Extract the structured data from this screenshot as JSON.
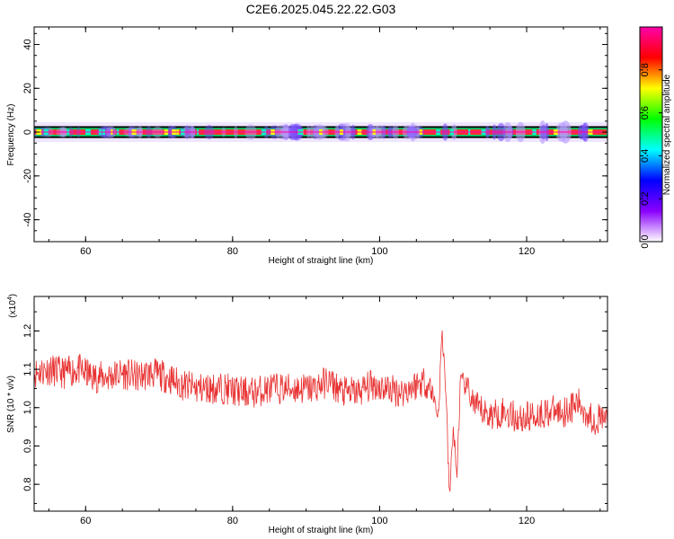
{
  "title": "C2E6.2025.045.22.22.G03",
  "chart_data": [
    {
      "type": "heatmap",
      "xlabel": "Height of straight line (km)",
      "ylabel": "Frequency (Hz)",
      "xlim": [
        53,
        131
      ],
      "ylim": [
        -50,
        48
      ],
      "x_ticks": [
        60,
        80,
        100,
        120
      ],
      "y_ticks": [
        -40,
        -20,
        0,
        20,
        40
      ],
      "colorbar": {
        "label": "Normalized spectral amplitude",
        "range": [
          0,
          1
        ],
        "ticks": [
          0.0,
          0.2,
          0.4,
          0.6,
          0.8
        ],
        "colors": [
          "#ffffff",
          "#8a00ff",
          "#0000ff",
          "#00ffff",
          "#00ff00",
          "#ffff00",
          "#ff0000",
          "#ff00aa"
        ]
      },
      "band_center_hz": 0,
      "band_halfwidth_hz": 1.5
    },
    {
      "type": "line",
      "xlabel": "Height of straight line (km)",
      "ylabel": "SNR (10 * v/v)",
      "y_multiplier": "(x10^4)",
      "y_multiplier_base": "(x10",
      "y_multiplier_exp": "4",
      "y_multiplier_close": ")",
      "xlim": [
        53,
        131
      ],
      "ylim": [
        0.73,
        1.29
      ],
      "x_ticks": [
        60,
        80,
        100,
        120
      ],
      "y_ticks": [
        0.8,
        0.9,
        1.0,
        1.1,
        1.2
      ],
      "line_color": "#e83232",
      "series": [
        {
          "x": [
            53,
            55,
            57,
            59,
            61,
            63,
            65,
            67,
            69,
            71,
            73,
            75,
            77,
            79,
            81,
            83,
            85,
            87,
            89,
            91,
            93,
            95,
            97,
            99,
            101,
            103,
            105,
            106,
            107,
            108,
            108.5,
            109,
            109.5,
            110,
            110.5,
            111,
            112,
            113,
            115,
            117,
            119,
            121,
            123,
            125,
            127,
            129,
            131
          ],
          "values": [
            1.09,
            1.1,
            1.09,
            1.1,
            1.08,
            1.08,
            1.09,
            1.08,
            1.09,
            1.08,
            1.06,
            1.05,
            1.05,
            1.05,
            1.04,
            1.04,
            1.05,
            1.05,
            1.05,
            1.05,
            1.07,
            1.04,
            1.04,
            1.06,
            1.05,
            1.04,
            1.06,
            1.07,
            1.05,
            0.98,
            1.2,
            1.05,
            0.76,
            0.95,
            0.82,
            1.07,
            1.05,
            1.0,
            0.98,
            0.99,
            0.97,
            0.98,
            0.99,
            0.99,
            1.01,
            0.97,
            0.97
          ]
        }
      ]
    }
  ]
}
